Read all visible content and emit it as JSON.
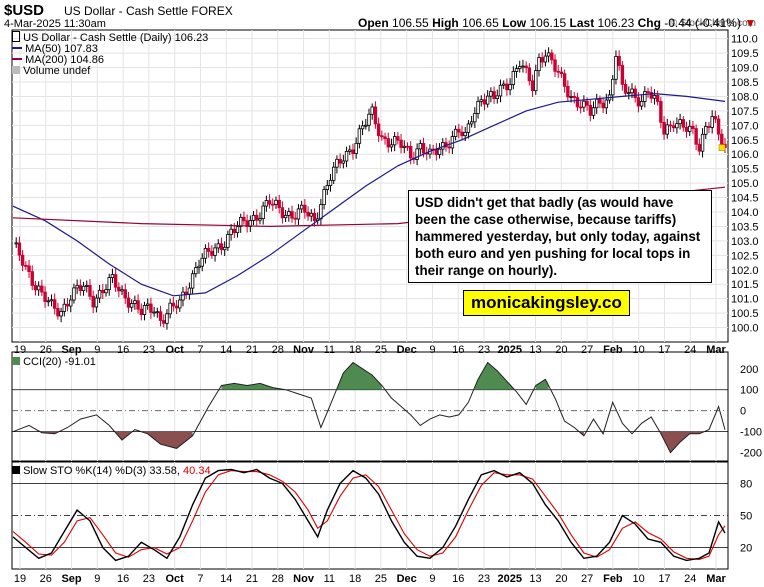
{
  "header": {
    "symbol": "$USD",
    "description": "US Dollar - Cash Settle FOREX",
    "datetime": "4-Mar-2025 11:30am",
    "watermark": "© StockCharts.com",
    "open_label": "Open",
    "open": "106.55",
    "high_label": "High",
    "high": "106.65",
    "low_label": "Low",
    "low": "106.15",
    "last_label": "Last",
    "last": "106.23",
    "chg_label": "Chg",
    "chg": "-0.44 (-0.41%)",
    "chg_marker": "▼"
  },
  "legend": {
    "main": "US Dollar - Cash Settle (Daily) 106.23",
    "ma50": "MA(50) 107.83",
    "ma200": "MA(200) 104.86",
    "volume": "Volume undef",
    "cci": "CCI(20) -91.01",
    "sto_prefix": "Slow STO %K(14) %D(3) 33.58,",
    "sto_d": "40.34"
  },
  "annotation": "USD didn't get that badly (as would have been the case otherwise, because tariffs) hammered yesterday, but only today, against both euro and yen pushing for local tops in their range on hourly).",
  "brand": "monicakingsley.co",
  "colors": {
    "up": "#000000",
    "down": "#cc0033",
    "ma50": "#1a1a8c",
    "ma200": "#990033",
    "cci_fill": "#4f8a50",
    "cci_neg": "#8b4f4f",
    "k": "#000000",
    "d": "#dd0000"
  },
  "chart_data": [
    {
      "type": "candlestick",
      "title": "US Dollar - Cash Settle (Daily) 106.23",
      "ylim": [
        99.5,
        110.3
      ],
      "y_ticks": [
        100.0,
        100.5,
        101.0,
        101.5,
        102.0,
        102.5,
        103.0,
        103.5,
        104.0,
        104.5,
        105.0,
        105.5,
        106.0,
        106.5,
        107.0,
        107.5,
        108.0,
        108.5,
        109.0,
        109.5,
        110.0
      ],
      "x_tick_labels": [
        "19",
        "26",
        "Sep",
        "9",
        "16",
        "23",
        "Oct",
        "7",
        "14",
        "21",
        "28",
        "Nov",
        "11",
        "18",
        "25",
        "Dec",
        "9",
        "16",
        "23",
        "2025",
        "13",
        "20",
        "27",
        "Feb",
        "10",
        "17",
        "24",
        "Mar"
      ],
      "month_labels": [
        "Sep",
        "Oct",
        "Nov",
        "Dec",
        "2025",
        "Feb",
        "Mar"
      ],
      "close_path": [
        [
          0,
          102.8
        ],
        [
          3,
          102.3
        ],
        [
          6,
          101.7
        ],
        [
          9,
          101.1
        ],
        [
          12,
          100.7
        ],
        [
          15,
          100.6
        ],
        [
          18,
          101.1
        ],
        [
          22,
          101.4
        ],
        [
          25,
          101.0
        ],
        [
          28,
          101.3
        ],
        [
          31,
          101.6
        ],
        [
          34,
          101.2
        ],
        [
          37,
          100.9
        ],
        [
          40,
          100.5
        ],
        [
          44,
          100.7
        ],
        [
          46,
          100.3
        ],
        [
          49,
          100.6
        ],
        [
          52,
          100.8
        ],
        [
          55,
          101.6
        ],
        [
          58,
          102.3
        ],
        [
          62,
          102.6
        ],
        [
          65,
          102.9
        ],
        [
          68,
          103.3
        ],
        [
          72,
          103.6
        ],
        [
          76,
          103.9
        ],
        [
          80,
          104.3
        ],
        [
          83,
          104.1
        ],
        [
          87,
          103.9
        ],
        [
          91,
          104.0
        ],
        [
          94,
          103.7
        ],
        [
          96,
          104.4
        ],
        [
          99,
          105.2
        ],
        [
          103,
          105.9
        ],
        [
          106,
          106.3
        ],
        [
          109,
          106.9
        ],
        [
          112,
          107.4
        ],
        [
          115,
          106.6
        ],
        [
          118,
          106.4
        ],
        [
          121,
          106.3
        ],
        [
          124,
          106.0
        ],
        [
          127,
          106.3
        ],
        [
          130,
          105.9
        ],
        [
          133,
          106.2
        ],
        [
          136,
          106.5
        ],
        [
          139,
          106.8
        ],
        [
          141,
          106.5
        ],
        [
          143,
          107.3
        ],
        [
          146,
          108.0
        ],
        [
          150,
          107.9
        ],
        [
          152,
          108.2
        ],
        [
          155,
          108.6
        ],
        [
          158,
          109.2
        ],
        [
          160,
          108.7
        ],
        [
          162,
          108.3
        ],
        [
          164,
          109.3
        ],
        [
          166,
          109.6
        ],
        [
          168,
          109.2
        ],
        [
          171,
          108.5
        ],
        [
          174,
          108.0
        ],
        [
          177,
          107.8
        ],
        [
          180,
          107.4
        ],
        [
          183,
          107.8
        ],
        [
          186,
          108.0
        ],
        [
          188,
          109.5
        ],
        [
          190,
          108.2
        ],
        [
          193,
          108.1
        ],
        [
          196,
          107.9
        ],
        [
          198,
          108.2
        ],
        [
          201,
          107.6
        ],
        [
          203,
          106.8
        ],
        [
          206,
          107.2
        ],
        [
          209,
          106.9
        ],
        [
          212,
          106.7
        ],
        [
          214,
          106.3
        ],
        [
          216,
          107.0
        ],
        [
          218,
          107.3
        ],
        [
          220,
          106.6
        ],
        [
          222,
          106.23
        ]
      ],
      "ma50": [
        [
          0,
          104.2
        ],
        [
          10,
          103.7
        ],
        [
          20,
          103.0
        ],
        [
          30,
          102.2
        ],
        [
          40,
          101.5
        ],
        [
          50,
          101.1
        ],
        [
          60,
          101.2
        ],
        [
          70,
          101.8
        ],
        [
          80,
          102.5
        ],
        [
          90,
          103.3
        ],
        [
          100,
          104.1
        ],
        [
          110,
          104.9
        ],
        [
          120,
          105.6
        ],
        [
          130,
          106.1
        ],
        [
          140,
          106.5
        ],
        [
          150,
          107.0
        ],
        [
          160,
          107.5
        ],
        [
          170,
          107.8
        ],
        [
          180,
          107.9
        ],
        [
          190,
          108.0
        ],
        [
          200,
          108.1
        ],
        [
          210,
          108.0
        ],
        [
          222,
          107.83
        ]
      ],
      "ma200": [
        [
          0,
          103.8
        ],
        [
          40,
          103.6
        ],
        [
          80,
          103.5
        ],
        [
          120,
          103.6
        ],
        [
          160,
          104.1
        ],
        [
          200,
          104.6
        ],
        [
          222,
          104.86
        ]
      ],
      "last": 106.23
    },
    {
      "type": "line",
      "title": "CCI(20) -91.01",
      "ylim": [
        -240,
        280
      ],
      "y_ticks": [
        200,
        100,
        0,
        -100,
        -200
      ],
      "reference_lines": [
        100,
        0,
        -100
      ],
      "values": [
        [
          0,
          -100
        ],
        [
          5,
          -70
        ],
        [
          9,
          -105
        ],
        [
          13,
          -110
        ],
        [
          17,
          -80
        ],
        [
          21,
          -40
        ],
        [
          26,
          -20
        ],
        [
          30,
          -70
        ],
        [
          34,
          -140
        ],
        [
          38,
          -90
        ],
        [
          42,
          -110
        ],
        [
          46,
          -160
        ],
        [
          51,
          -180
        ],
        [
          56,
          -120
        ],
        [
          61,
          20
        ],
        [
          65,
          120
        ],
        [
          69,
          130
        ],
        [
          73,
          120
        ],
        [
          77,
          130
        ],
        [
          81,
          110
        ],
        [
          85,
          100
        ],
        [
          89,
          80
        ],
        [
          93,
          60
        ],
        [
          96,
          -80
        ],
        [
          99,
          30
        ],
        [
          103,
          180
        ],
        [
          106,
          230
        ],
        [
          109,
          200
        ],
        [
          112,
          170
        ],
        [
          115,
          120
        ],
        [
          118,
          60
        ],
        [
          121,
          20
        ],
        [
          124,
          -20
        ],
        [
          127,
          -70
        ],
        [
          130,
          -40
        ],
        [
          133,
          -20
        ],
        [
          136,
          -30
        ],
        [
          139,
          -20
        ],
        [
          142,
          40
        ],
        [
          145,
          150
        ],
        [
          148,
          230
        ],
        [
          151,
          190
        ],
        [
          154,
          140
        ],
        [
          157,
          90
        ],
        [
          160,
          30
        ],
        [
          163,
          120
        ],
        [
          166,
          150
        ],
        [
          169,
          60
        ],
        [
          172,
          -50
        ],
        [
          175,
          -80
        ],
        [
          178,
          -120
        ],
        [
          181,
          -40
        ],
        [
          184,
          -110
        ],
        [
          187,
          40
        ],
        [
          190,
          -60
        ],
        [
          193,
          -110
        ],
        [
          196,
          -60
        ],
        [
          199,
          -30
        ],
        [
          202,
          -110
        ],
        [
          205,
          -200
        ],
        [
          208,
          -150
        ],
        [
          211,
          -110
        ],
        [
          214,
          -110
        ],
        [
          217,
          -90
        ],
        [
          220,
          20
        ],
        [
          222,
          -91
        ]
      ]
    },
    {
      "type": "line",
      "title": "Slow STO %K(14) %D(3)",
      "ylim": [
        0,
        100
      ],
      "y_ticks": [
        80,
        50,
        20
      ],
      "reference_lines": [
        80,
        50,
        20
      ],
      "series": [
        {
          "name": "%K(14)",
          "values": [
            [
              0,
              30
            ],
            [
              4,
              20
            ],
            [
              8,
              10
            ],
            [
              12,
              15
            ],
            [
              16,
              35
            ],
            [
              20,
              55
            ],
            [
              24,
              45
            ],
            [
              28,
              20
            ],
            [
              32,
              8
            ],
            [
              36,
              12
            ],
            [
              40,
              25
            ],
            [
              44,
              18
            ],
            [
              48,
              10
            ],
            [
              52,
              30
            ],
            [
              56,
              60
            ],
            [
              60,
              85
            ],
            [
              64,
              92
            ],
            [
              68,
              93
            ],
            [
              72,
              90
            ],
            [
              76,
              93
            ],
            [
              80,
              85
            ],
            [
              84,
              80
            ],
            [
              88,
              65
            ],
            [
              92,
              45
            ],
            [
              95,
              30
            ],
            [
              98,
              55
            ],
            [
              102,
              80
            ],
            [
              106,
              92
            ],
            [
              110,
              85
            ],
            [
              114,
              70
            ],
            [
              118,
              45
            ],
            [
              122,
              25
            ],
            [
              126,
              12
            ],
            [
              130,
              10
            ],
            [
              134,
              20
            ],
            [
              138,
              40
            ],
            [
              142,
              65
            ],
            [
              146,
              88
            ],
            [
              150,
              92
            ],
            [
              154,
              86
            ],
            [
              158,
              90
            ],
            [
              162,
              80
            ],
            [
              166,
              60
            ],
            [
              170,
              45
            ],
            [
              174,
              25
            ],
            [
              178,
              10
            ],
            [
              182,
              12
            ],
            [
              186,
              25
            ],
            [
              190,
              50
            ],
            [
              194,
              42
            ],
            [
              198,
              28
            ],
            [
              202,
              25
            ],
            [
              206,
              12
            ],
            [
              210,
              8
            ],
            [
              214,
              10
            ],
            [
              217,
              15
            ],
            [
              220,
              44
            ],
            [
              222,
              33.58
            ]
          ]
        },
        {
          "name": "%D(3)",
          "values": [
            [
              0,
              35
            ],
            [
              4,
              25
            ],
            [
              8,
              14
            ],
            [
              12,
              13
            ],
            [
              16,
              25
            ],
            [
              20,
              45
            ],
            [
              24,
              48
            ],
            [
              28,
              32
            ],
            [
              32,
              15
            ],
            [
              36,
              11
            ],
            [
              40,
              18
            ],
            [
              44,
              20
            ],
            [
              48,
              14
            ],
            [
              52,
              20
            ],
            [
              56,
              45
            ],
            [
              60,
              72
            ],
            [
              64,
              88
            ],
            [
              68,
              92
            ],
            [
              72,
              91
            ],
            [
              76,
              91
            ],
            [
              80,
              88
            ],
            [
              84,
              82
            ],
            [
              88,
              72
            ],
            [
              92,
              55
            ],
            [
              95,
              38
            ],
            [
              98,
              45
            ],
            [
              102,
              68
            ],
            [
              106,
              85
            ],
            [
              110,
              88
            ],
            [
              114,
              77
            ],
            [
              118,
              55
            ],
            [
              122,
              33
            ],
            [
              126,
              18
            ],
            [
              130,
              12
            ],
            [
              134,
              15
            ],
            [
              138,
              30
            ],
            [
              142,
              55
            ],
            [
              146,
              78
            ],
            [
              150,
              90
            ],
            [
              154,
              88
            ],
            [
              158,
              88
            ],
            [
              162,
              84
            ],
            [
              166,
              68
            ],
            [
              170,
              52
            ],
            [
              174,
              32
            ],
            [
              178,
              15
            ],
            [
              182,
              11
            ],
            [
              186,
              18
            ],
            [
              190,
              38
            ],
            [
              194,
              44
            ],
            [
              198,
              34
            ],
            [
              202,
              28
            ],
            [
              206,
              16
            ],
            [
              210,
              10
            ],
            [
              214,
              9
            ],
            [
              217,
              12
            ],
            [
              220,
              32
            ],
            [
              222,
              40.34
            ]
          ]
        }
      ]
    }
  ]
}
